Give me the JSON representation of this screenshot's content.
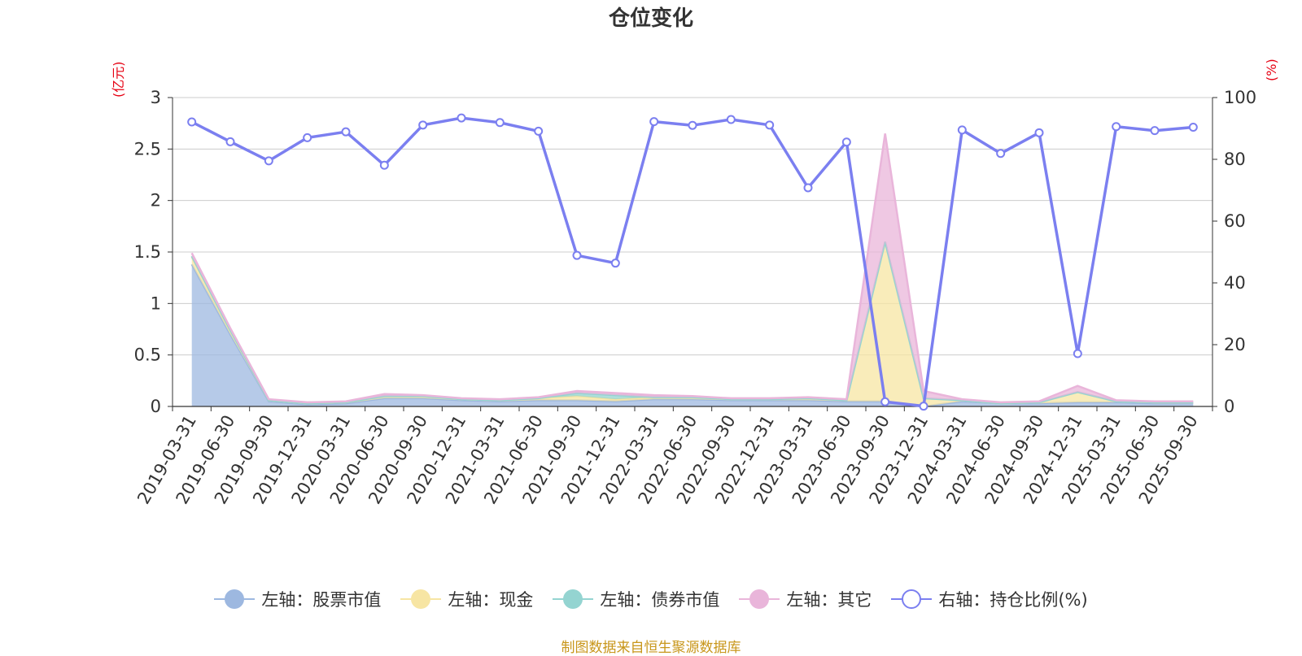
{
  "chart_data": {
    "type": "area",
    "title": "仓位变化",
    "left_unit": "(亿元)",
    "right_unit": "(%)",
    "left_ylim": [
      0,
      3
    ],
    "left_ticks": [
      "0",
      "0.5",
      "1",
      "1.5",
      "2",
      "2.5",
      "3"
    ],
    "right_ylim": [
      0,
      100
    ],
    "right_ticks": [
      "0",
      "20",
      "40",
      "60",
      "80",
      "100"
    ],
    "grid": true,
    "legend_position": "bottom",
    "categories": [
      "2019-03-31",
      "2019-06-30",
      "2019-09-30",
      "2019-12-31",
      "2020-03-31",
      "2020-06-30",
      "2020-09-30",
      "2020-12-31",
      "2021-03-31",
      "2021-06-30",
      "2021-09-30",
      "2021-12-31",
      "2022-03-31",
      "2022-06-30",
      "2022-09-30",
      "2022-12-31",
      "2023-03-31",
      "2023-06-30",
      "2023-09-30",
      "2023-12-31",
      "2024-03-31",
      "2024-06-30",
      "2024-09-30",
      "2024-12-31",
      "2025-03-31",
      "2025-06-30",
      "2025-09-30"
    ],
    "series": [
      {
        "name": "左轴：股票市值",
        "axis": "left",
        "kind": "stacked-area",
        "color": "#9db8e0",
        "values": [
          1.38,
          0.7,
          0.05,
          0.02,
          0.03,
          0.08,
          0.08,
          0.06,
          0.05,
          0.06,
          0.06,
          0.05,
          0.07,
          0.07,
          0.06,
          0.06,
          0.06,
          0.05,
          0.05,
          0.0,
          0.05,
          0.03,
          0.03,
          0.04,
          0.04,
          0.03,
          0.03
        ]
      },
      {
        "name": "左轴：现金",
        "axis": "left",
        "kind": "stacked-area",
        "color": "#f7e5a3",
        "values": [
          0.07,
          0.03,
          0.01,
          0.01,
          0.01,
          0.02,
          0.02,
          0.01,
          0.01,
          0.02,
          0.04,
          0.02,
          0.02,
          0.02,
          0.01,
          0.01,
          0.02,
          0.01,
          1.55,
          0.08,
          0.01,
          0.0,
          0.01,
          0.1,
          0.01,
          0.01,
          0.01
        ]
      },
      {
        "name": "左轴：债券市值",
        "axis": "left",
        "kind": "stacked-area",
        "color": "#94d4d1",
        "values": [
          0.01,
          0.01,
          0.0,
          0.0,
          0.0,
          0.0,
          0.0,
          0.0,
          0.0,
          0.0,
          0.03,
          0.04,
          0.0,
          0.0,
          0.0,
          0.0,
          0.0,
          0.0,
          0.0,
          0.0,
          0.0,
          0.0,
          0.0,
          0.0,
          0.0,
          0.0,
          0.0
        ]
      },
      {
        "name": "左轴：其它",
        "axis": "left",
        "kind": "stacked-area",
        "color": "#e9b5da",
        "values": [
          0.03,
          0.02,
          0.01,
          0.01,
          0.01,
          0.02,
          0.01,
          0.01,
          0.01,
          0.01,
          0.02,
          0.02,
          0.02,
          0.01,
          0.01,
          0.01,
          0.01,
          0.01,
          1.05,
          0.07,
          0.01,
          0.01,
          0.01,
          0.06,
          0.01,
          0.01,
          0.01
        ]
      },
      {
        "name": "右轴：持仓比例(%)",
        "axis": "right",
        "kind": "line",
        "color": "#7b7ff0",
        "values": [
          92.1,
          85.7,
          79.5,
          87.0,
          88.9,
          78.1,
          91.1,
          93.4,
          91.9,
          89.1,
          48.9,
          46.4,
          92.2,
          91.0,
          92.9,
          91.1,
          70.8,
          85.6,
          1.5,
          0.1,
          89.5,
          81.9,
          88.6,
          17.1,
          90.6,
          89.3,
          90.4
        ]
      }
    ]
  },
  "source_text": "制图数据来自恒生聚源数据库",
  "colors": {
    "axis_text": "#333333",
    "unit_text": "#e60012",
    "grid": "#cccccc",
    "source_text": "#c8961a"
  }
}
